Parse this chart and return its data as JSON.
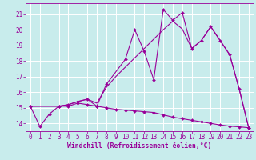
{
  "background_color": "#c8ecec",
  "grid_color": "#ffffff",
  "line_color": "#990099",
  "xlabel": "Windchill (Refroidissement éolien,°C)",
  "xlabel_fontsize": 5.8,
  "tick_fontsize": 5.5,
  "xlim_min": -0.5,
  "xlim_max": 23.5,
  "ylim_min": 13.5,
  "ylim_max": 21.7,
  "yticks": [
    14,
    15,
    16,
    17,
    18,
    19,
    20,
    21
  ],
  "xticks": [
    0,
    1,
    2,
    3,
    4,
    5,
    6,
    7,
    8,
    9,
    10,
    11,
    12,
    13,
    14,
    15,
    16,
    17,
    18,
    19,
    20,
    21,
    22,
    23
  ],
  "line1_x": [
    0,
    1,
    2,
    3,
    4,
    5,
    6,
    7,
    8,
    9,
    10,
    11,
    12,
    13,
    14,
    15,
    16,
    17,
    18,
    19,
    20,
    21,
    22,
    23
  ],
  "line1_y": [
    15.1,
    13.8,
    14.6,
    15.1,
    15.1,
    15.3,
    15.2,
    15.1,
    15.0,
    14.9,
    14.85,
    14.8,
    14.75,
    14.7,
    14.55,
    14.4,
    14.3,
    14.2,
    14.1,
    14.0,
    13.9,
    13.82,
    13.78,
    13.72
  ],
  "line2_x": [
    0,
    3,
    4,
    5,
    6,
    7,
    8,
    10,
    11,
    12,
    13,
    14,
    15,
    16,
    17,
    18,
    19,
    20,
    21,
    22,
    23
  ],
  "line2_y": [
    15.1,
    15.1,
    15.2,
    15.4,
    15.55,
    15.1,
    16.5,
    18.1,
    20.0,
    18.6,
    16.8,
    21.3,
    20.6,
    21.1,
    18.8,
    19.3,
    20.2,
    19.3,
    18.4,
    16.2,
    13.72
  ],
  "line3_x": [
    0,
    3,
    4,
    5,
    6,
    7,
    8,
    9,
    10,
    11,
    12,
    13,
    14,
    15,
    16,
    17,
    18,
    19,
    20,
    21,
    22,
    23
  ],
  "line3_y": [
    15.1,
    15.1,
    15.2,
    15.4,
    15.55,
    15.3,
    16.3,
    17.0,
    17.6,
    18.2,
    18.8,
    19.4,
    20.0,
    20.55,
    20.05,
    18.8,
    19.3,
    20.2,
    19.3,
    18.4,
    16.2,
    13.72
  ]
}
